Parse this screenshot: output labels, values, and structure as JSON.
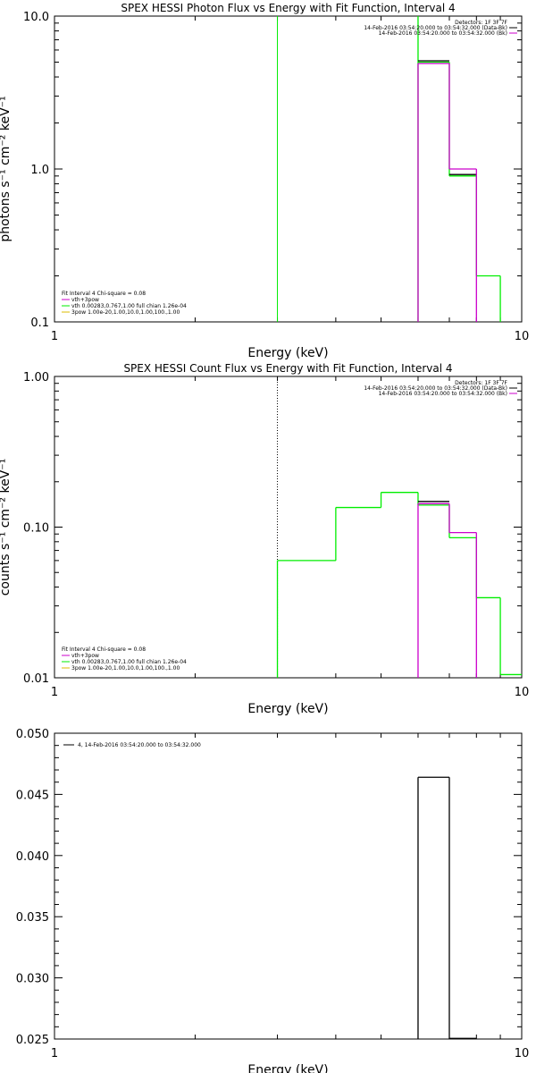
{
  "colors": {
    "fit": "#00ee00",
    "data": "#000000",
    "bk": "#cc00cc",
    "comp": "#ddbb00"
  },
  "chart_data": [
    {
      "type": "line",
      "title": "SPEX HESSI Photon Flux vs Energy with Fit Function, Interval 4",
      "xlabel": "Energy (keV)",
      "ylabel": "photons s⁻¹ cm⁻² keV⁻¹",
      "xscale": "log",
      "yscale": "log",
      "xlim": [
        1,
        10
      ],
      "ylim": [
        0.1,
        10
      ],
      "x_ticks": [
        "1",
        "10"
      ],
      "y_ticks": [
        {
          "v": 10,
          "t": "10.0"
        },
        {
          "v": 1,
          "t": "1.0"
        },
        {
          "v": 0.1,
          "t": "0.1"
        }
      ],
      "vline": 3,
      "vline_style": "solid",
      "legend_tr": [
        "Detectors: 1F 3F 7F",
        "14-Feb-2016 03:54:20.000 to 03:54:32.000 (Data-Bk)",
        "14-Feb-2016 03:54:20.000 to 03:54:32.000 (Bk)"
      ],
      "legend_bl": [
        "Fit Interval 4   Chi-square = 0.08",
        "vth+3pow",
        "vth 0.00283,0.767,1.00  full chian 1.26e-04",
        "3pow 1.00e-20,1.00,10.0,1.00,100.,1.00"
      ],
      "series": [
        {
          "name": "Fit",
          "color": "#00ee00",
          "steps": [
            [
              6,
              7,
              5.0
            ],
            [
              7,
              8,
              0.9
            ],
            [
              8,
              9,
              0.2
            ]
          ],
          "risers": [
            [
              6,
              0.1,
              5.0
            ],
            [
              7,
              0.9,
              5.0
            ],
            [
              8,
              0.2,
              0.9
            ],
            [
              9,
              0.1,
              0.2
            ]
          ],
          "extra": [
            [
              6,
              5.0,
              10
            ]
          ]
        },
        {
          "name": "Data-Bk",
          "color": "#000000",
          "steps": [
            [
              6,
              7,
              5.1
            ],
            [
              7,
              8,
              0.92
            ]
          ]
        },
        {
          "name": "Bk",
          "color": "#cc00cc",
          "steps": [
            [
              6,
              7,
              4.9
            ],
            [
              7,
              8,
              1.0
            ]
          ],
          "risers": [
            [
              6,
              0.1,
              4.9
            ],
            [
              7,
              1.0,
              4.9
            ],
            [
              8,
              0.1,
              1.0
            ]
          ]
        }
      ]
    },
    {
      "type": "line",
      "title": "SPEX HESSI Count Flux vs Energy with Fit Function, Interval 4",
      "xlabel": "Energy (keV)",
      "ylabel": "counts s⁻¹ cm⁻² keV⁻¹",
      "xscale": "log",
      "yscale": "log",
      "xlim": [
        1,
        10
      ],
      "ylim": [
        0.01,
        1
      ],
      "x_ticks": [
        "1",
        "10"
      ],
      "y_ticks": [
        {
          "v": 1,
          "t": "1.00"
        },
        {
          "v": 0.1,
          "t": "0.10"
        },
        {
          "v": 0.01,
          "t": "0.01"
        }
      ],
      "vline": 3,
      "vline_style": "dotted",
      "legend_tr": [
        "Detectors: 1F 3F 7F",
        "14-Feb-2016 03:54:20.000 to 03:54:32.000 (Data-Bk)",
        "14-Feb-2016 03:54:20.000 to 03:54:32.000 (Bk)"
      ],
      "legend_bl": [
        "Fit Interval 4   Chi-square = 0.08",
        "vth+3pow",
        "vth 0.00283,0.767,1.00  full chian 1.26e-04",
        "3pow 1.00e-20,1.00,10.0,1.00,100.,1.00"
      ],
      "series": [
        {
          "name": "Fit",
          "color": "#00ee00",
          "steps": [
            [
              3,
              4,
              0.06
            ],
            [
              4,
              5,
              0.135
            ],
            [
              5,
              6,
              0.17
            ],
            [
              6,
              7,
              0.14
            ],
            [
              7,
              8,
              0.085
            ],
            [
              8,
              9,
              0.034
            ],
            [
              9,
              10,
              0.0105
            ]
          ],
          "risers": [
            [
              3,
              0.01,
              0.06
            ],
            [
              4,
              0.06,
              0.135
            ],
            [
              5,
              0.135,
              0.17
            ],
            [
              6,
              0.14,
              0.17
            ],
            [
              7,
              0.085,
              0.14
            ],
            [
              8,
              0.034,
              0.085
            ],
            [
              9,
              0.0105,
              0.034
            ]
          ]
        },
        {
          "name": "Data-Bk",
          "color": "#000000",
          "steps": [
            [
              6,
              7,
              0.148
            ]
          ]
        },
        {
          "name": "Bk",
          "color": "#cc00cc",
          "steps": [
            [
              6,
              7,
              0.143
            ],
            [
              7,
              8,
              0.092
            ]
          ],
          "risers": [
            [
              6,
              0.01,
              0.143
            ],
            [
              7,
              0.092,
              0.143
            ],
            [
              8,
              0.01,
              0.092
            ]
          ]
        }
      ]
    },
    {
      "type": "line",
      "title": "",
      "xlabel": "Energy (keV)",
      "ylabel": "",
      "xscale": "log",
      "yscale": "linear",
      "xlim": [
        1,
        10
      ],
      "ylim": [
        0.025,
        0.05
      ],
      "x_ticks": [
        "1",
        "10"
      ],
      "y_ticks": [
        {
          "v": 0.05,
          "t": "0.050"
        },
        {
          "v": 0.045,
          "t": "0.045"
        },
        {
          "v": 0.04,
          "t": "0.040"
        },
        {
          "v": 0.035,
          "t": "0.035"
        },
        {
          "v": 0.03,
          "t": "0.030"
        },
        {
          "v": 0.025,
          "t": "0.025"
        }
      ],
      "legend_tl": [
        "4, 14-Feb-2016 03:54:20.000 to 03:54:32.000"
      ],
      "series": [
        {
          "name": "4, 14-Feb-2016 03:54:20.000 to 03:54:32.000",
          "color": "#000000",
          "steps": [
            [
              6,
              7,
              0.0464
            ],
            [
              7,
              8,
              0.02505
            ]
          ],
          "risers": [
            [
              6,
              0.025,
              0.0464
            ],
            [
              7,
              0.025,
              0.0464
            ]
          ]
        }
      ]
    }
  ]
}
